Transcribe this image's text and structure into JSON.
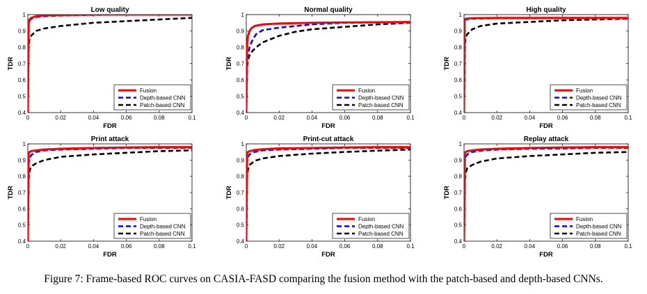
{
  "caption": "Figure 7: Frame-based ROC curves on CASIA-FASD comparing the fusion method with the patch-based and depth-based CNNs.",
  "series_styles": [
    {
      "name": "Fusion",
      "color": "#ff0000",
      "dash": "solid"
    },
    {
      "name": "Depth-based CNN",
      "color": "#0000ff",
      "dash": "dashed"
    },
    {
      "name": "Patch-based CNN",
      "color": "#000000",
      "dash": "dashed"
    }
  ],
  "chart_data": [
    {
      "type": "line",
      "title": "Low quality",
      "xlabel": "FDR",
      "ylabel": "TDR",
      "xlim": [
        0,
        0.1
      ],
      "ylim": [
        0.4,
        1
      ],
      "xticks": [
        "0",
        "0.02",
        "0.04",
        "0.06",
        "0.08",
        "0.1"
      ],
      "yticks": [
        "0.4",
        "0.5",
        "0.6",
        "0.7",
        "0.8",
        "0.9",
        "1"
      ],
      "legend": "bottom-right",
      "grid": false,
      "series": [
        {
          "name": "Fusion",
          "x": [
            0,
            0.0005,
            0.001,
            0.002,
            0.005,
            0.01,
            0.02,
            0.04,
            0.06,
            0.08,
            0.1
          ],
          "y": [
            0.4,
            0.95,
            0.97,
            0.98,
            0.99,
            0.995,
            0.998,
            1.0,
            1.0,
            1.0,
            1.0
          ]
        },
        {
          "name": "Depth-based CNN",
          "x": [
            0,
            0.0005,
            0.001,
            0.002,
            0.005,
            0.01,
            0.02,
            0.04,
            0.06,
            0.08,
            0.1
          ],
          "y": [
            0.4,
            0.94,
            0.96,
            0.975,
            0.985,
            0.99,
            0.995,
            0.998,
            1.0,
            1.0,
            1.0
          ]
        },
        {
          "name": "Patch-based CNN",
          "x": [
            0,
            0.0005,
            0.001,
            0.002,
            0.005,
            0.01,
            0.02,
            0.04,
            0.06,
            0.08,
            0.1
          ],
          "y": [
            0.4,
            0.8,
            0.85,
            0.87,
            0.9,
            0.915,
            0.93,
            0.95,
            0.96,
            0.97,
            0.98
          ]
        }
      ]
    },
    {
      "type": "line",
      "title": "Normal quality",
      "xlabel": "FDR",
      "ylabel": "TDR",
      "xlim": [
        0,
        0.1
      ],
      "ylim": [
        0.4,
        1
      ],
      "xticks": [
        "0",
        "0.02",
        "0.04",
        "0.06",
        "0.08",
        "0.1"
      ],
      "yticks": [
        "0.4",
        "0.5",
        "0.6",
        "0.7",
        "0.8",
        "0.9",
        "1"
      ],
      "legend": "bottom-right",
      "grid": false,
      "series": [
        {
          "name": "Fusion",
          "x": [
            0,
            0.0005,
            0.001,
            0.002,
            0.003,
            0.005,
            0.01,
            0.02,
            0.04,
            0.06,
            0.08,
            0.1
          ],
          "y": [
            0.4,
            0.82,
            0.87,
            0.9,
            0.915,
            0.93,
            0.94,
            0.945,
            0.95,
            0.952,
            0.953,
            0.955
          ]
        },
        {
          "name": "Depth-based CNN",
          "x": [
            0,
            0.0005,
            0.001,
            0.002,
            0.004,
            0.006,
            0.01,
            0.02,
            0.03,
            0.04,
            0.06,
            0.08,
            0.1
          ],
          "y": [
            0.4,
            0.7,
            0.75,
            0.8,
            0.85,
            0.88,
            0.905,
            0.92,
            0.93,
            0.94,
            0.95,
            0.952,
            0.955
          ]
        },
        {
          "name": "Patch-based CNN",
          "x": [
            0,
            0.0005,
            0.001,
            0.002,
            0.004,
            0.006,
            0.01,
            0.02,
            0.03,
            0.04,
            0.06,
            0.08,
            0.1
          ],
          "y": [
            0.4,
            0.68,
            0.72,
            0.75,
            0.78,
            0.8,
            0.83,
            0.87,
            0.895,
            0.91,
            0.925,
            0.94,
            0.95
          ]
        }
      ]
    },
    {
      "type": "line",
      "title": "High quality",
      "xlabel": "FDR",
      "ylabel": "TDR",
      "xlim": [
        0,
        0.1
      ],
      "ylim": [
        0.4,
        1
      ],
      "xticks": [
        "0",
        "0.02",
        "0.04",
        "0.06",
        "0.08",
        "0.1"
      ],
      "yticks": [
        "0.4",
        "0.5",
        "0.6",
        "0.7",
        "0.8",
        "0.9",
        "1"
      ],
      "legend": "bottom-right",
      "grid": false,
      "series": [
        {
          "name": "Fusion",
          "x": [
            0,
            0.0003,
            0.001,
            0.005,
            0.02,
            0.05,
            0.1
          ],
          "y": [
            0.4,
            0.97,
            0.975,
            0.978,
            0.98,
            0.98,
            0.98
          ]
        },
        {
          "name": "Depth-based CNN",
          "x": [
            0,
            0.0003,
            0.001,
            0.005,
            0.02,
            0.05,
            0.1
          ],
          "y": [
            0.4,
            0.96,
            0.97,
            0.975,
            0.978,
            0.98,
            0.98
          ]
        },
        {
          "name": "Patch-based CNN",
          "x": [
            0,
            0.0005,
            0.001,
            0.002,
            0.005,
            0.01,
            0.02,
            0.04,
            0.06,
            0.08,
            0.1
          ],
          "y": [
            0.4,
            0.82,
            0.86,
            0.88,
            0.91,
            0.93,
            0.945,
            0.955,
            0.965,
            0.97,
            0.975
          ]
        }
      ]
    },
    {
      "type": "line",
      "title": "Print attack",
      "xlabel": "FDR",
      "ylabel": "TDR",
      "xlim": [
        0,
        0.1
      ],
      "ylim": [
        0.4,
        1
      ],
      "xticks": [
        "0",
        "0.02",
        "0.04",
        "0.06",
        "0.08",
        "0.1"
      ],
      "yticks": [
        "0.4",
        "0.5",
        "0.6",
        "0.7",
        "0.8",
        "0.9",
        "1"
      ],
      "legend": "bottom-right",
      "grid": false,
      "series": [
        {
          "name": "Fusion",
          "x": [
            0,
            0.0005,
            0.001,
            0.002,
            0.005,
            0.01,
            0.02,
            0.04,
            0.06,
            0.08,
            0.1
          ],
          "y": [
            0.4,
            0.94,
            0.95,
            0.955,
            0.96,
            0.965,
            0.97,
            0.975,
            0.978,
            0.98,
            0.98
          ]
        },
        {
          "name": "Depth-based CNN",
          "x": [
            0,
            0.0005,
            0.001,
            0.002,
            0.005,
            0.01,
            0.02,
            0.04,
            0.06,
            0.08,
            0.1
          ],
          "y": [
            0.4,
            0.88,
            0.91,
            0.93,
            0.95,
            0.96,
            0.965,
            0.97,
            0.975,
            0.975,
            0.975
          ]
        },
        {
          "name": "Patch-based CNN",
          "x": [
            0,
            0.0005,
            0.001,
            0.002,
            0.005,
            0.01,
            0.02,
            0.04,
            0.06,
            0.08,
            0.1
          ],
          "y": [
            0.4,
            0.78,
            0.83,
            0.86,
            0.88,
            0.9,
            0.92,
            0.935,
            0.945,
            0.955,
            0.96
          ]
        }
      ]
    },
    {
      "type": "line",
      "title": "Print-cut attack",
      "xlabel": "FDR",
      "ylabel": "TDR",
      "xlim": [
        0,
        0.1
      ],
      "ylim": [
        0.4,
        1
      ],
      "xticks": [
        "0",
        "0.02",
        "0.04",
        "0.06",
        "0.08",
        "0.1"
      ],
      "yticks": [
        "0.4",
        "0.5",
        "0.6",
        "0.7",
        "0.8",
        "0.9",
        "1"
      ],
      "legend": "bottom-right",
      "grid": false,
      "series": [
        {
          "name": "Fusion",
          "x": [
            0,
            0.0005,
            0.001,
            0.002,
            0.005,
            0.01,
            0.02,
            0.04,
            0.06,
            0.08,
            0.1
          ],
          "y": [
            0.4,
            0.94,
            0.95,
            0.955,
            0.962,
            0.967,
            0.972,
            0.975,
            0.978,
            0.98,
            0.98
          ]
        },
        {
          "name": "Depth-based CNN",
          "x": [
            0,
            0.0005,
            0.001,
            0.002,
            0.005,
            0.01,
            0.02,
            0.04,
            0.06,
            0.08,
            0.1
          ],
          "y": [
            0.4,
            0.9,
            0.92,
            0.935,
            0.95,
            0.96,
            0.965,
            0.97,
            0.975,
            0.975,
            0.975
          ]
        },
        {
          "name": "Patch-based CNN",
          "x": [
            0,
            0.0005,
            0.001,
            0.002,
            0.005,
            0.01,
            0.02,
            0.04,
            0.06,
            0.08,
            0.1
          ],
          "y": [
            0.4,
            0.8,
            0.84,
            0.87,
            0.895,
            0.91,
            0.925,
            0.94,
            0.95,
            0.958,
            0.965
          ]
        }
      ]
    },
    {
      "type": "line",
      "title": "Replay attack",
      "xlabel": "FDR",
      "ylabel": "TDR",
      "xlim": [
        0,
        0.1
      ],
      "ylim": [
        0.4,
        1
      ],
      "xticks": [
        "0",
        "0.02",
        "0.04",
        "0.06",
        "0.08",
        "0.1"
      ],
      "yticks": [
        "0.4",
        "0.5",
        "0.6",
        "0.7",
        "0.8",
        "0.9",
        "1"
      ],
      "legend": "bottom-right",
      "grid": false,
      "series": [
        {
          "name": "Fusion",
          "x": [
            0,
            0.0005,
            0.001,
            0.002,
            0.005,
            0.01,
            0.02,
            0.04,
            0.06,
            0.08,
            0.1
          ],
          "y": [
            0.4,
            0.94,
            0.95,
            0.955,
            0.96,
            0.965,
            0.97,
            0.975,
            0.978,
            0.98,
            0.98
          ]
        },
        {
          "name": "Depth-based CNN",
          "x": [
            0,
            0.0005,
            0.001,
            0.002,
            0.005,
            0.01,
            0.02,
            0.04,
            0.06,
            0.08,
            0.1
          ],
          "y": [
            0.4,
            0.9,
            0.92,
            0.935,
            0.95,
            0.958,
            0.965,
            0.97,
            0.972,
            0.975,
            0.975
          ]
        },
        {
          "name": "Patch-based CNN",
          "x": [
            0,
            0.0005,
            0.001,
            0.002,
            0.005,
            0.01,
            0.02,
            0.04,
            0.06,
            0.08,
            0.1
          ],
          "y": [
            0.4,
            0.78,
            0.82,
            0.85,
            0.87,
            0.89,
            0.91,
            0.925,
            0.935,
            0.945,
            0.95
          ]
        }
      ]
    }
  ]
}
